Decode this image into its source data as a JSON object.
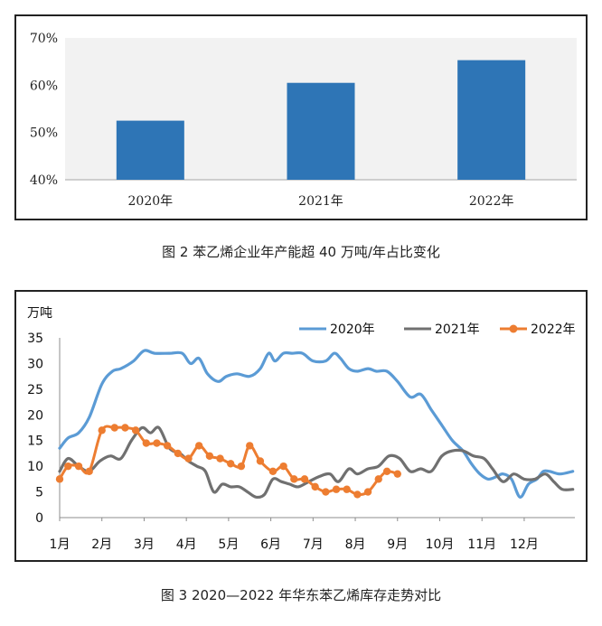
{
  "figures": [
    {
      "caption": "图 2  苯乙烯企业年产能超 40 万吨/年占比变化"
    },
    {
      "caption": "图 3  2020—2022 年华东苯乙烯库存走势对比"
    }
  ],
  "chart_data": [
    {
      "type": "bar",
      "categories": [
        "2020年",
        "2021年",
        "2022年"
      ],
      "values": [
        52.5,
        60.5,
        65.3
      ],
      "yticks": [
        "40%",
        "50%",
        "60%",
        "70%"
      ],
      "ylim": [
        40,
        70
      ],
      "title": "",
      "xlabel": "",
      "ylabel": "",
      "colors": {
        "bar": "#2e75b6",
        "plot_bg": "#f2f2f2"
      }
    },
    {
      "type": "line",
      "ylabel": "万吨",
      "ylim": [
        0,
        35
      ],
      "yticks": [
        "0",
        "5",
        "10",
        "15",
        "20",
        "25",
        "30",
        "35"
      ],
      "x_ticks": [
        "1月",
        "2月",
        "3月",
        "4月",
        "5月",
        "6月",
        "7月",
        "8月",
        "9月",
        "10月",
        "11月",
        "12月"
      ],
      "xlim": [
        1,
        13.2
      ],
      "legend_position": "top",
      "series": [
        {
          "name": "2020年",
          "color": "#5b9bd5",
          "marker": false,
          "x": [
            1.0,
            1.2,
            1.45,
            1.7,
            2.0,
            2.25,
            2.45,
            2.75,
            3.0,
            3.25,
            3.6,
            3.9,
            4.1,
            4.3,
            4.5,
            4.75,
            4.95,
            5.2,
            5.5,
            5.75,
            5.95,
            6.1,
            6.3,
            6.5,
            6.75,
            7.0,
            7.3,
            7.5,
            7.65,
            7.85,
            8.05,
            8.3,
            8.5,
            8.75,
            9.0,
            9.3,
            9.55,
            9.8,
            10.05,
            10.3,
            10.55,
            10.75,
            10.95,
            11.15,
            11.35,
            11.5,
            11.7,
            11.9,
            12.1,
            12.3,
            12.45,
            12.6,
            12.85,
            13.15
          ],
          "y": [
            13.5,
            15.5,
            16.5,
            19.5,
            26.0,
            28.5,
            29.0,
            30.5,
            32.5,
            32.0,
            32.0,
            32.0,
            30.0,
            31.0,
            28.0,
            26.5,
            27.5,
            28.0,
            27.5,
            29.0,
            32.0,
            30.5,
            32.0,
            32.0,
            32.0,
            30.5,
            30.5,
            32.0,
            31.0,
            29.0,
            28.5,
            29.0,
            28.5,
            28.5,
            26.5,
            23.5,
            24.0,
            21.0,
            18.0,
            15.0,
            13.0,
            10.5,
            8.5,
            7.5,
            8.0,
            8.5,
            7.5,
            4.0,
            6.5,
            7.5,
            9.0,
            9.0,
            8.5,
            9.0
          ]
        },
        {
          "name": "2021年",
          "color": "#707070",
          "marker": false,
          "x": [
            1.0,
            1.2,
            1.45,
            1.7,
            1.95,
            2.2,
            2.45,
            2.7,
            2.95,
            3.15,
            3.35,
            3.6,
            3.85,
            4.05,
            4.25,
            4.45,
            4.65,
            4.85,
            5.05,
            5.25,
            5.45,
            5.65,
            5.85,
            6.05,
            6.25,
            6.45,
            6.65,
            6.9,
            7.15,
            7.4,
            7.6,
            7.85,
            8.05,
            8.3,
            8.55,
            8.8,
            9.05,
            9.3,
            9.55,
            9.8,
            10.05,
            10.3,
            10.55,
            10.8,
            11.05,
            11.25,
            11.5,
            11.75,
            12.0,
            12.25,
            12.5,
            12.7,
            12.9,
            13.15
          ],
          "y": [
            9.0,
            11.5,
            10.0,
            9.0,
            11.0,
            12.0,
            11.5,
            15.0,
            17.5,
            16.5,
            17.5,
            13.5,
            12.5,
            11.0,
            10.0,
            9.0,
            5.0,
            6.5,
            6.0,
            6.0,
            5.0,
            4.0,
            4.5,
            7.5,
            7.0,
            6.5,
            6.0,
            7.0,
            8.0,
            8.5,
            7.0,
            9.5,
            8.5,
            9.5,
            10.0,
            12.0,
            11.5,
            9.0,
            9.5,
            9.0,
            12.0,
            13.0,
            13.0,
            12.0,
            11.5,
            9.5,
            7.0,
            8.5,
            7.5,
            7.5,
            8.5,
            7.0,
            5.5,
            5.5
          ]
        },
        {
          "name": "2022年",
          "color": "#ed7d31",
          "marker": true,
          "x": [
            1.0,
            1.2,
            1.45,
            1.7,
            2.0,
            2.3,
            2.55,
            2.8,
            3.05,
            3.3,
            3.55,
            3.8,
            4.05,
            4.3,
            4.55,
            4.8,
            5.05,
            5.3,
            5.5,
            5.75,
            6.05,
            6.3,
            6.55,
            6.8,
            7.05,
            7.3,
            7.55,
            7.8,
            8.05,
            8.3,
            8.55,
            8.75,
            9.0
          ],
          "y": [
            7.5,
            10.0,
            10.0,
            9.0,
            17.0,
            17.5,
            17.5,
            17.0,
            14.5,
            14.5,
            14.0,
            12.5,
            11.5,
            14.0,
            12.0,
            11.5,
            10.5,
            10.0,
            14.0,
            11.0,
            9.0,
            10.0,
            7.5,
            7.5,
            6.0,
            5.0,
            5.5,
            5.5,
            4.5,
            5.0,
            7.5,
            9.0,
            8.5
          ]
        }
      ]
    }
  ]
}
